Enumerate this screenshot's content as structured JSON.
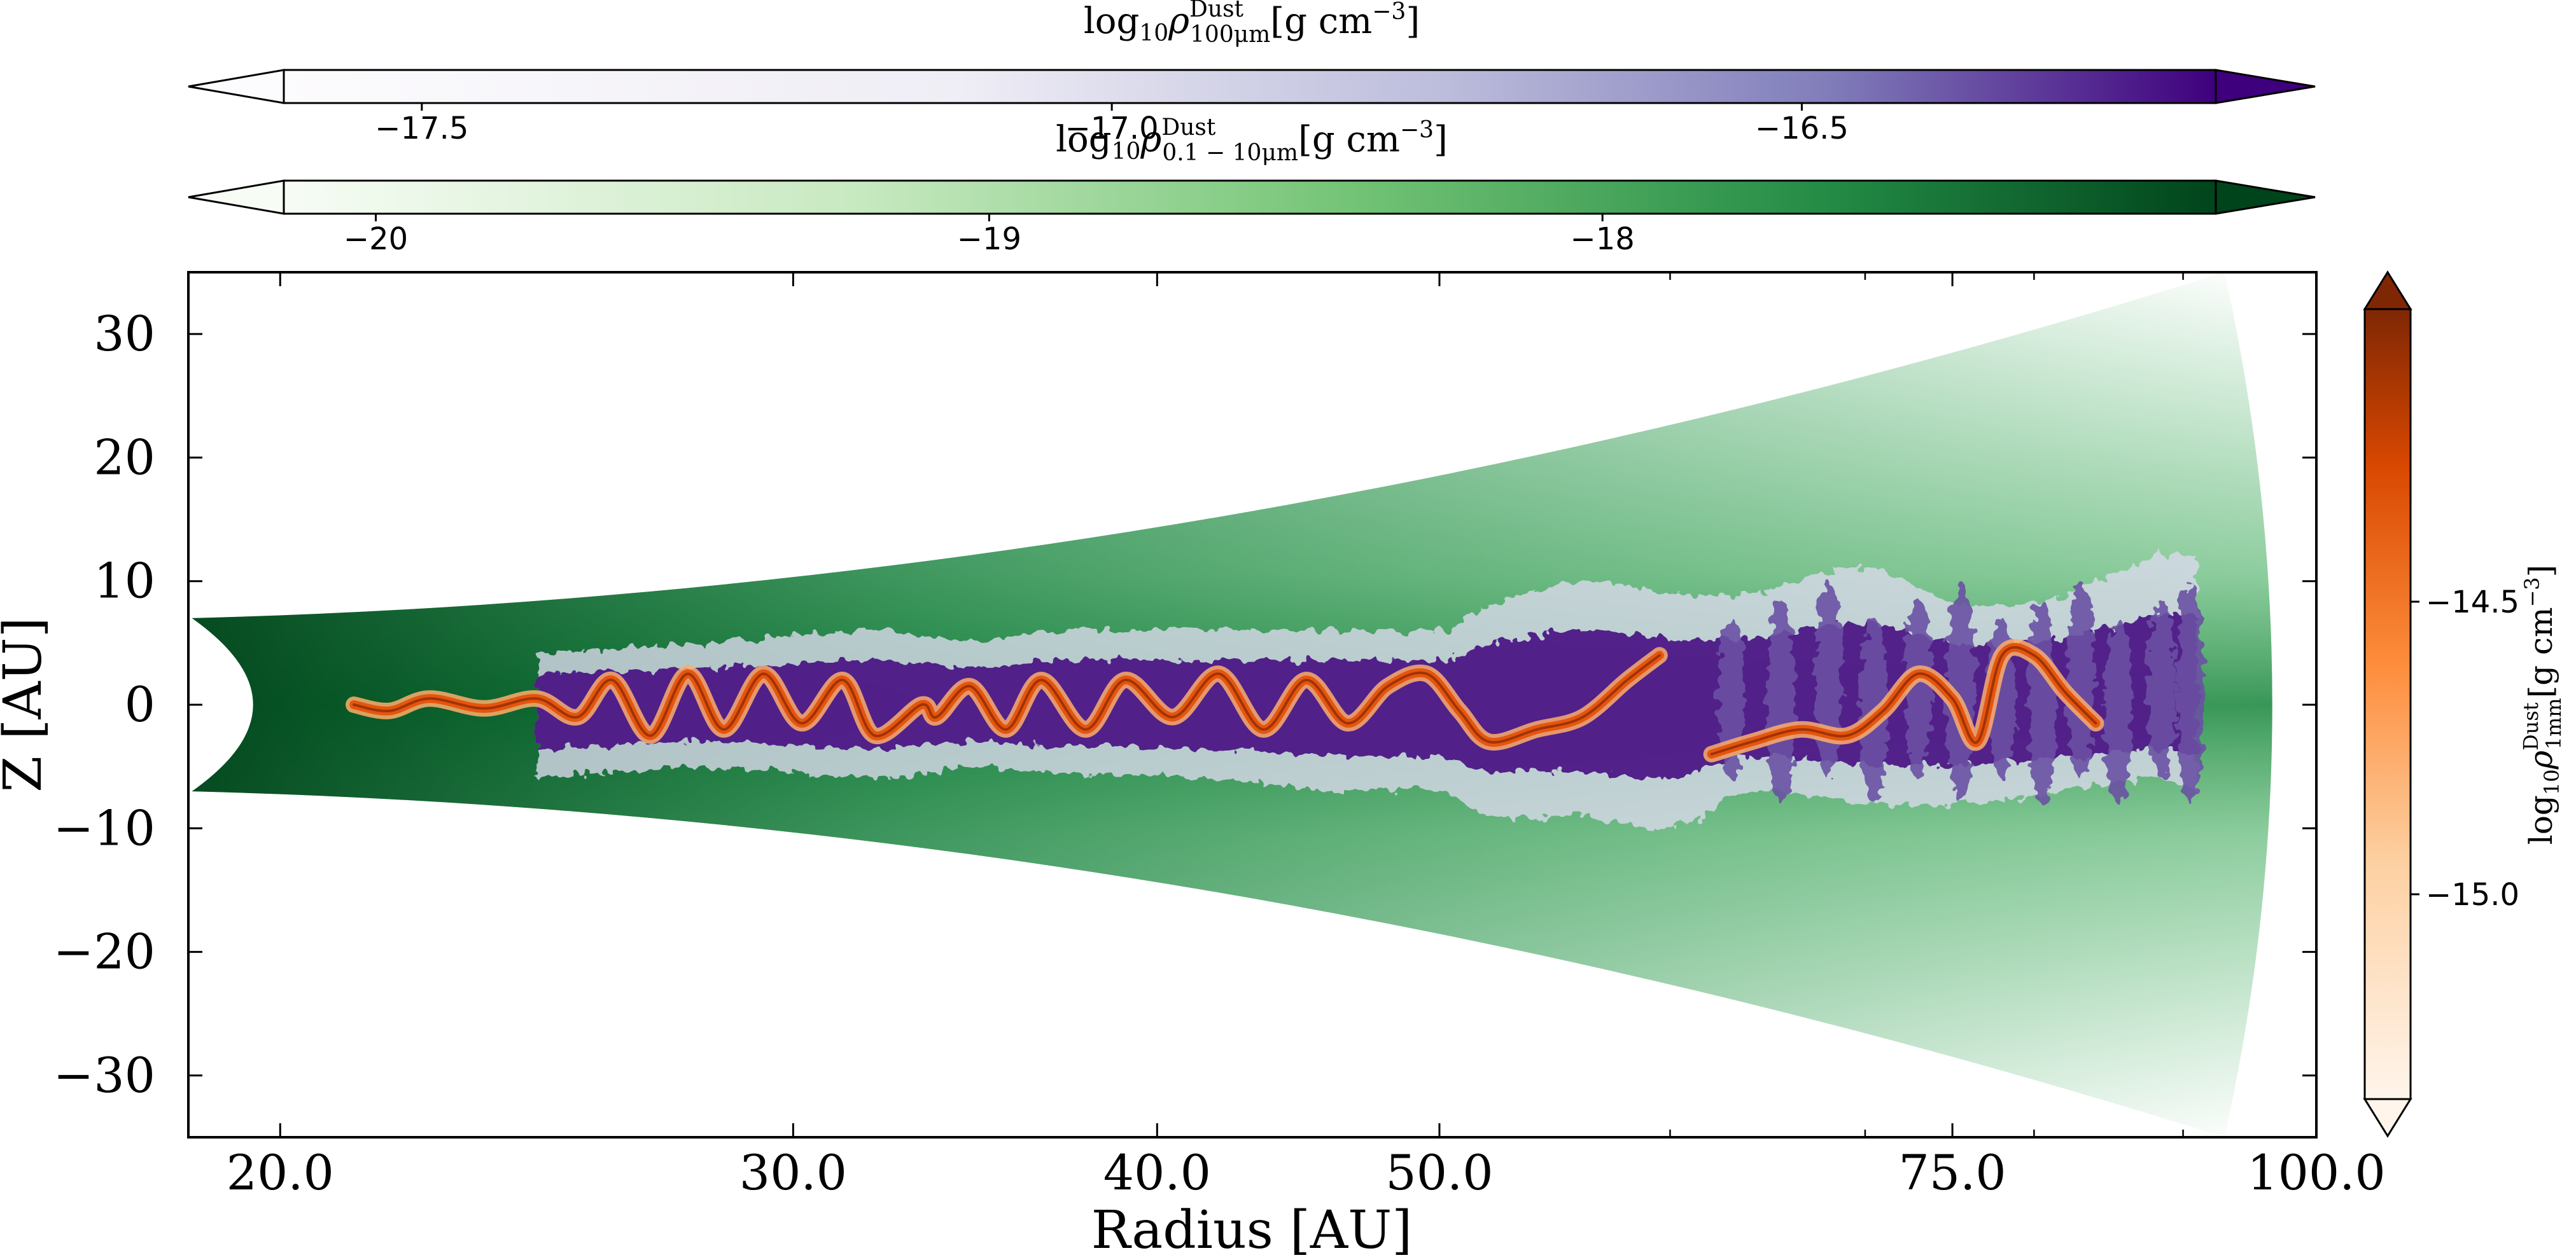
{
  "chart_data": {
    "type": "heatmap",
    "main": {
      "xlabel": "Radius [AU]",
      "ylabel": "Z [AU]",
      "x_scale": "log",
      "xlim": [
        18.6,
        100.0
      ],
      "ylim": [
        -35,
        35
      ],
      "x_ticks": [
        {
          "value": 20.0,
          "label": "20.0"
        },
        {
          "value": 30.0,
          "label": "30.0"
        },
        {
          "value": 40.0,
          "label": "40.0"
        },
        {
          "value": 50.0,
          "label": "50.0"
        },
        {
          "value": 75.0,
          "label": "75.0"
        },
        {
          "value": 100.0,
          "label": "100.0"
        }
      ],
      "x_minor_ticks": [
        60,
        70,
        80,
        90
      ],
      "y_ticks": [
        {
          "value": 30,
          "label": "30"
        },
        {
          "value": 20,
          "label": "20"
        },
        {
          "value": 10,
          "label": "10"
        },
        {
          "value": 0,
          "label": "0"
        },
        {
          "value": -10,
          "label": "−10"
        },
        {
          "value": -20,
          "label": "−20"
        },
        {
          "value": -30,
          "label": "−30"
        }
      ],
      "disk": {
        "inner_radius": 18.6,
        "outer_radius": 93,
        "half_height_at_inner": 7,
        "half_height_at_outer": 35,
        "green_cavity_radius": 20.5
      },
      "small_dust_layer_band": [
        [
          24.5,
          4,
          6
        ],
        [
          28,
          5,
          5
        ],
        [
          32,
          6,
          6
        ],
        [
          34.5,
          5,
          5
        ],
        [
          37,
          6,
          5.5
        ],
        [
          42,
          6,
          6
        ],
        [
          46,
          6,
          7
        ],
        [
          50,
          6,
          7
        ],
        [
          52,
          8,
          9
        ],
        [
          56,
          10,
          9
        ],
        [
          60,
          9,
          10
        ],
        [
          64,
          9,
          7
        ],
        [
          70,
          11,
          8
        ],
        [
          76,
          8,
          8
        ],
        [
          82,
          9,
          7
        ],
        [
          88,
          12,
          6
        ],
        [
          91,
          12,
          7
        ]
      ],
      "small_dust_columns_x": [
        63,
        65.5,
        68,
        70.5,
        73,
        75.5,
        78,
        80.5,
        83,
        85.5,
        88.5,
        90.5
      ],
      "large_dust_midplane": [
        [
          21.2,
          0
        ],
        [
          21.8,
          -0.5
        ],
        [
          22.5,
          0.5
        ],
        [
          23.5,
          -0.3
        ],
        [
          24.5,
          0.5
        ],
        [
          25.3,
          -1
        ],
        [
          26,
          2
        ],
        [
          26.8,
          -2.5
        ],
        [
          27.6,
          2.5
        ],
        [
          28.4,
          -2
        ],
        [
          29.3,
          2.5
        ],
        [
          30.2,
          -1.5
        ],
        [
          31.2,
          2
        ],
        [
          32,
          -2.5
        ],
        [
          33.2,
          0
        ],
        [
          33.6,
          -1
        ],
        [
          34.5,
          1.5
        ],
        [
          35.5,
          -2
        ],
        [
          36.5,
          2
        ],
        [
          37.8,
          -2
        ],
        [
          39,
          2
        ],
        [
          40.5,
          -1
        ],
        [
          42,
          2.5
        ],
        [
          43.5,
          -2
        ],
        [
          45,
          2
        ],
        [
          46.5,
          -1.5
        ],
        [
          48,
          1.5
        ],
        [
          49.5,
          2.5
        ],
        [
          50.8,
          -0.5
        ],
        [
          52,
          -3
        ],
        [
          54,
          -2
        ],
        [
          56,
          -1
        ],
        [
          58,
          2
        ],
        [
          59.5,
          4
        ]
      ],
      "large_dust_outer": [
        [
          62,
          -4
        ],
        [
          64,
          -3
        ],
        [
          66.5,
          -2
        ],
        [
          69,
          -2.5
        ],
        [
          71,
          -0.5
        ],
        [
          73,
          2.5
        ],
        [
          75,
          0.5
        ],
        [
          76.5,
          -3
        ],
        [
          78,
          4
        ],
        [
          80,
          4
        ],
        [
          82,
          1
        ],
        [
          84,
          -1.5
        ]
      ]
    },
    "colorbar_100um": {
      "label_tex": "log10 rho^Dust_100um [g cm^-3]",
      "label_base": "log",
      "label_base_sub": "10",
      "label_sym": "ρ",
      "label_sup": "Dust",
      "label_sub": "100μm",
      "label_unit": "[g cm",
      "label_unit_exp": "−3",
      "label_close": "]",
      "range": [
        -17.6,
        -16.2
      ],
      "ticks": [
        {
          "value": -17.5,
          "label": "−17.5"
        },
        {
          "value": -17.0,
          "label": "−17.0"
        },
        {
          "value": -16.5,
          "label": "−16.5"
        }
      ],
      "colormap": "Purples",
      "extend": "both"
    },
    "colorbar_small": {
      "label_base": "log",
      "label_base_sub": "10",
      "label_sym": "ρ",
      "label_sup": "Dust",
      "label_sub": "0.1 − 10μm",
      "label_unit": "[g cm",
      "label_unit_exp": "−3",
      "label_close": "]",
      "range": [
        -20.15,
        -17.0
      ],
      "ticks": [
        {
          "value": -20,
          "label": "−20"
        },
        {
          "value": -19,
          "label": "−19"
        },
        {
          "value": -18,
          "label": "−18"
        }
      ],
      "colormap": "Greens",
      "extend": "both"
    },
    "colorbar_1mm": {
      "label_base": "log",
      "label_base_sub": "10",
      "label_sym": "ρ",
      "label_sup": "Dust",
      "label_sub": "1mm",
      "label_unit": "[g cm",
      "label_unit_exp": "−3",
      "label_close": "]",
      "range": [
        -15.35,
        -14.0
      ],
      "ticks": [
        {
          "value": -14.5,
          "label": "−14.5"
        },
        {
          "value": -15.0,
          "label": "−15.0"
        }
      ],
      "colormap": "Oranges",
      "extend": "both"
    },
    "colors": {
      "green_dark": "#00441b",
      "green_mid": "#41ab5d",
      "green_light": "#c7e9c0",
      "purple_dark": "#3f007d",
      "purple_mid": "#6a51a3",
      "purple_light": "#dadaeb",
      "orange_dark": "#7f2704",
      "orange_mid": "#e6550d",
      "orange_light": "#fdae6b"
    }
  }
}
